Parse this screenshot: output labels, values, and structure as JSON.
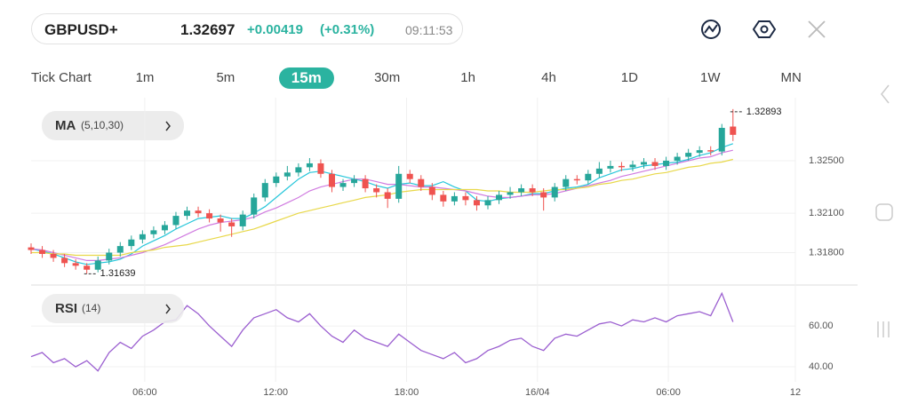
{
  "header": {
    "symbol": "GBPUSD+",
    "price": "1.32697",
    "change": "+0.00419",
    "change_pct": "(+0.31%)",
    "time": "09:11:53"
  },
  "timeframes": {
    "items": [
      "Tick Chart",
      "1m",
      "5m",
      "15m",
      "30m",
      "1h",
      "4h",
      "1D",
      "1W",
      "MN"
    ],
    "selected": 3,
    "selected_color": "#2bb3a0"
  },
  "chart_data": [
    {
      "type": "candlestick",
      "indicator": {
        "name": "MA",
        "params": "(5,10,30)"
      },
      "up_color": "#26a69a",
      "down_color": "#ef5350",
      "candles": [
        [
          1.3184,
          1.3187,
          1.3179,
          1.3182
        ],
        [
          1.3182,
          1.3185,
          1.3176,
          1.3179
        ],
        [
          1.3179,
          1.3182,
          1.3173,
          1.3176
        ],
        [
          1.3176,
          1.3179,
          1.3169,
          1.3172
        ],
        [
          1.3172,
          1.3175,
          1.3167,
          1.317
        ],
        [
          1.317,
          1.3172,
          1.31639,
          1.3167
        ],
        [
          1.3167,
          1.3177,
          1.3165,
          1.3174
        ],
        [
          1.3174,
          1.3183,
          1.3171,
          1.318
        ],
        [
          1.318,
          1.3188,
          1.3177,
          1.3185
        ],
        [
          1.3185,
          1.3193,
          1.3182,
          1.319
        ],
        [
          1.319,
          1.3197,
          1.3187,
          1.3194
        ],
        [
          1.3194,
          1.32,
          1.3191,
          1.3197
        ],
        [
          1.3197,
          1.3204,
          1.3194,
          1.3201
        ],
        [
          1.3201,
          1.3211,
          1.3198,
          1.3208
        ],
        [
          1.3208,
          1.3215,
          1.3205,
          1.3212
        ],
        [
          1.3212,
          1.3215,
          1.3207,
          1.321
        ],
        [
          1.321,
          1.3213,
          1.3203,
          1.3206
        ],
        [
          1.3206,
          1.3209,
          1.3196,
          1.3203
        ],
        [
          1.3203,
          1.3206,
          1.3192,
          1.32
        ],
        [
          1.32,
          1.3212,
          1.3197,
          1.3209
        ],
        [
          1.3209,
          1.3225,
          1.3206,
          1.3222
        ],
        [
          1.3222,
          1.3236,
          1.3219,
          1.3233
        ],
        [
          1.3233,
          1.3241,
          1.323,
          1.3238
        ],
        [
          1.3238,
          1.3246,
          1.3235,
          1.3241
        ],
        [
          1.3241,
          1.3248,
          1.3238,
          1.3245
        ],
        [
          1.3245,
          1.3252,
          1.3242,
          1.3248
        ],
        [
          1.3248,
          1.3251,
          1.3237,
          1.324
        ],
        [
          1.324,
          1.3243,
          1.3226,
          1.323
        ],
        [
          1.323,
          1.3236,
          1.3227,
          1.3233
        ],
        [
          1.3233,
          1.3239,
          1.323,
          1.3236
        ],
        [
          1.3236,
          1.3239,
          1.3226,
          1.3229
        ],
        [
          1.3229,
          1.3232,
          1.3222,
          1.3226
        ],
        [
          1.3226,
          1.3229,
          1.3214,
          1.3221
        ],
        [
          1.3221,
          1.3246,
          1.3218,
          1.324
        ],
        [
          1.324,
          1.3243,
          1.3233,
          1.3236
        ],
        [
          1.3236,
          1.3239,
          1.3227,
          1.323
        ],
        [
          1.323,
          1.3233,
          1.322,
          1.3224
        ],
        [
          1.3224,
          1.3227,
          1.3215,
          1.3219
        ],
        [
          1.3219,
          1.3226,
          1.3216,
          1.3223
        ],
        [
          1.3223,
          1.3226,
          1.3216,
          1.322
        ],
        [
          1.322,
          1.3223,
          1.3212,
          1.3216
        ],
        [
          1.3216,
          1.3223,
          1.3213,
          1.322
        ],
        [
          1.322,
          1.3227,
          1.3217,
          1.3224
        ],
        [
          1.3224,
          1.323,
          1.3221,
          1.3226
        ],
        [
          1.3226,
          1.3232,
          1.3223,
          1.3229
        ],
        [
          1.3229,
          1.3232,
          1.3223,
          1.3226
        ],
        [
          1.3226,
          1.3229,
          1.3212,
          1.3222
        ],
        [
          1.3222,
          1.3233,
          1.3219,
          1.323
        ],
        [
          1.323,
          1.3239,
          1.3227,
          1.3236
        ],
        [
          1.3236,
          1.3239,
          1.3232,
          1.3235
        ],
        [
          1.3235,
          1.3243,
          1.3232,
          1.324
        ],
        [
          1.324,
          1.3249,
          1.3237,
          1.3244
        ],
        [
          1.3244,
          1.325,
          1.3241,
          1.3246
        ],
        [
          1.3246,
          1.3249,
          1.3242,
          1.3245
        ],
        [
          1.3245,
          1.325,
          1.3242,
          1.3247
        ],
        [
          1.3247,
          1.3252,
          1.3244,
          1.3249
        ],
        [
          1.3249,
          1.3252,
          1.3243,
          1.3246
        ],
        [
          1.3246,
          1.3253,
          1.3243,
          1.325
        ],
        [
          1.325,
          1.3256,
          1.3247,
          1.3253
        ],
        [
          1.3253,
          1.3259,
          1.325,
          1.3256
        ],
        [
          1.3256,
          1.3261,
          1.3253,
          1.3258
        ],
        [
          1.3258,
          1.3261,
          1.3254,
          1.3257
        ],
        [
          1.3257,
          1.3278,
          1.3254,
          1.3275
        ],
        [
          1.3276,
          1.32893,
          1.3265,
          1.32697
        ]
      ],
      "series": [
        {
          "color": "#26c6da",
          "values": [
            1.3183,
            1.3181,
            1.3179,
            1.3176,
            1.3173,
            1.3171,
            1.3172,
            1.3173,
            1.3175,
            1.3179,
            1.3185,
            1.3189,
            1.3193,
            1.3198,
            1.3202,
            1.3206,
            1.3207,
            1.3208,
            1.3206,
            1.3206,
            1.321,
            1.3215,
            1.3222,
            1.3229,
            1.3236,
            1.3241,
            1.3242,
            1.324,
            1.3238,
            1.3236,
            1.3234,
            1.3231,
            1.3229,
            1.3232,
            1.3233,
            1.3231,
            1.3231,
            1.3234,
            1.323,
            1.3227,
            1.322,
            1.3219,
            1.3221,
            1.3222,
            1.3223,
            1.3225,
            1.3225,
            1.3227,
            1.3229,
            1.323,
            1.3232,
            1.3237,
            1.324,
            1.3243,
            1.3244,
            1.3246,
            1.3247,
            1.3248,
            1.3249,
            1.3251,
            1.3254,
            1.3256,
            1.326,
            1.3263
          ]
        },
        {
          "color": "#d07be0",
          "values": [
            1.3183,
            1.3182,
            1.318,
            1.3178,
            1.3176,
            1.3174,
            1.3174,
            1.3175,
            1.3176,
            1.3178,
            1.318,
            1.3183,
            1.3186,
            1.319,
            1.3194,
            1.3198,
            1.3201,
            1.3203,
            1.3204,
            1.3205,
            1.3207,
            1.3211,
            1.3214,
            1.3218,
            1.3222,
            1.3227,
            1.323,
            1.3232,
            1.3234,
            1.3236,
            1.3236,
            1.3234,
            1.3232,
            1.3232,
            1.3231,
            1.323,
            1.323,
            1.3229,
            1.3228,
            1.3227,
            1.3225,
            1.3223,
            1.3222,
            1.3222,
            1.3223,
            1.3224,
            1.3224,
            1.3225,
            1.3227,
            1.3229,
            1.3231,
            1.3233,
            1.3235,
            1.3238,
            1.324,
            1.3242,
            1.3244,
            1.3246,
            1.3248,
            1.325,
            1.3252,
            1.3253,
            1.3256,
            1.3258
          ]
        },
        {
          "color": "#e8d84a",
          "values": [
            1.318,
            1.318,
            1.3179,
            1.3179,
            1.3178,
            1.3178,
            1.3178,
            1.3178,
            1.3178,
            1.318,
            1.3181,
            1.3182,
            1.3184,
            1.3185,
            1.3186,
            1.3188,
            1.319,
            1.3192,
            1.3194,
            1.3196,
            1.3198,
            1.3201,
            1.3204,
            1.3207,
            1.321,
            1.3212,
            1.3214,
            1.3216,
            1.3218,
            1.322,
            1.3222,
            1.3223,
            1.3224,
            1.3226,
            1.3227,
            1.3228,
            1.3228,
            1.3228,
            1.3228,
            1.3228,
            1.3228,
            1.3227,
            1.3227,
            1.3226,
            1.3226,
            1.3226,
            1.3227,
            1.3228,
            1.3228,
            1.3229,
            1.323,
            1.3232,
            1.3233,
            1.3235,
            1.3236,
            1.3238,
            1.324,
            1.3241,
            1.3243,
            1.3245,
            1.3246,
            1.3248,
            1.3249,
            1.3251
          ]
        }
      ],
      "ylim": [
        1.3156,
        1.3298
      ],
      "yticks": [
        {
          "value": 1.325,
          "label": "1.32500"
        },
        {
          "value": 1.321,
          "label": "1.32100"
        },
        {
          "value": 1.318,
          "label": "1.31800"
        }
      ],
      "xlim": [
        0,
        68.6
      ],
      "xticks": [
        {
          "value": 10.2,
          "label": "06:00"
        },
        {
          "value": 21.95,
          "label": "12:00"
        },
        {
          "value": 33.7,
          "label": "18:00"
        },
        {
          "value": 45.45,
          "label": "16/04"
        },
        {
          "value": 57.2,
          "label": "06:00"
        },
        {
          "value": 68.6,
          "label": "12"
        }
      ],
      "grid": true
    },
    {
      "type": "line",
      "indicator": {
        "name": "RSI",
        "params": "(14)"
      },
      "color": "#9b5fd0",
      "values": [
        45,
        47,
        42,
        44,
        40,
        43,
        38,
        47,
        52,
        49,
        55,
        58,
        62,
        63,
        70,
        66,
        60,
        55,
        50,
        58,
        64,
        66,
        68,
        64,
        62,
        66,
        60,
        55,
        52,
        58,
        54,
        52,
        50,
        56,
        52,
        48,
        46,
        44,
        47,
        42,
        44,
        48,
        50,
        53,
        54,
        50,
        48,
        54,
        56,
        55,
        58,
        61,
        62,
        60,
        63,
        62,
        64,
        62,
        65,
        66,
        67,
        65,
        76,
        62
      ],
      "ylim": [
        33.5,
        78.3
      ],
      "yticks": [
        {
          "value": 60,
          "label": "60.00"
        },
        {
          "value": 40,
          "label": "40.00"
        }
      ],
      "grid": true
    }
  ]
}
